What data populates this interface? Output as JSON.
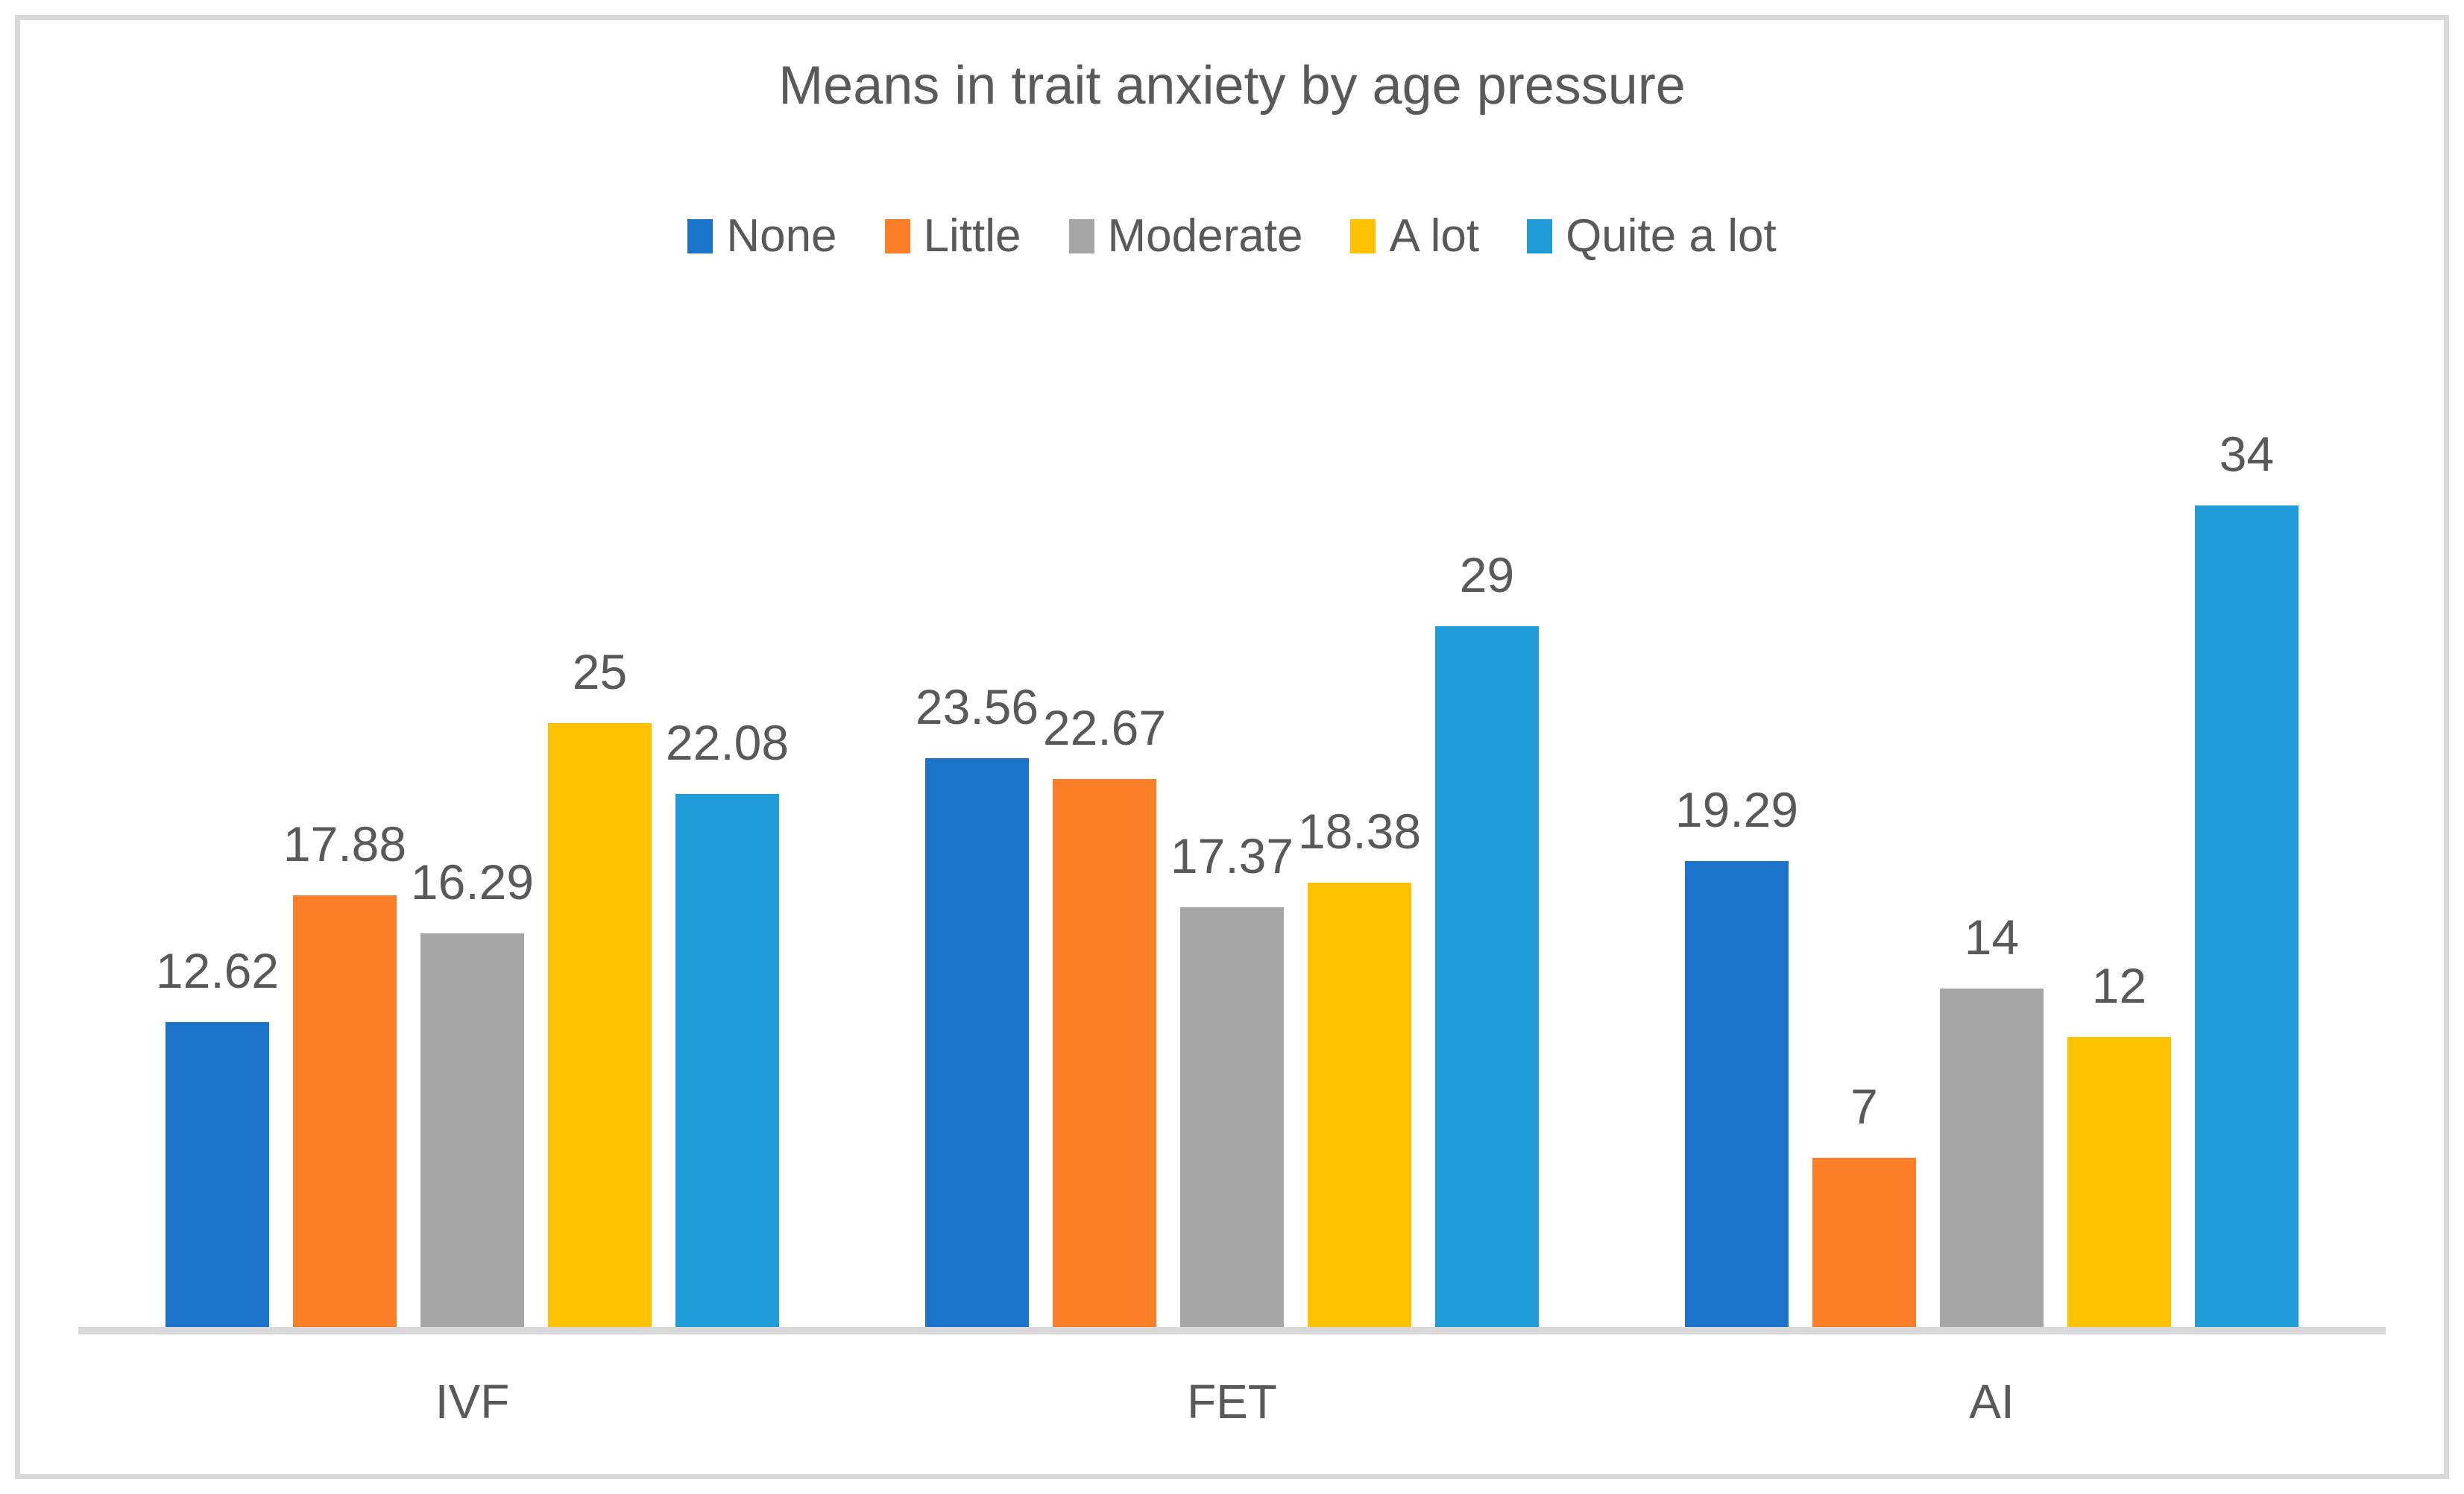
{
  "chart_data": {
    "type": "bar",
    "title": "Means in trait anxiety by age pressure",
    "categories": [
      "IVF",
      "FET",
      "AI"
    ],
    "series": [
      {
        "name": "None",
        "color": "#1B74C9",
        "values": [
          12.62,
          23.56,
          19.29
        ]
      },
      {
        "name": "Little",
        "color": "#FD7E28",
        "values": [
          17.88,
          22.67,
          7
        ]
      },
      {
        "name": "Moderate",
        "color": "#A6A6A6",
        "values": [
          16.29,
          17.37,
          14
        ]
      },
      {
        "name": "A lot",
        "color": "#FFC100",
        "values": [
          25,
          18.38,
          12
        ]
      },
      {
        "name": "Quite a lot",
        "color": "#209CD8",
        "values": [
          22.08,
          29,
          34
        ]
      }
    ],
    "data_labels": [
      "12.62",
      "17.88",
      "16.29",
      "25",
      "22.08",
      "23.56",
      "22.67",
      "17.37",
      "18.38",
      "29",
      "19.29",
      "7",
      "14",
      "12",
      "34"
    ],
    "legend_position": "top",
    "gridlines": false,
    "y_axis_visible": false,
    "x_axis_line_color": "#D9D9D9",
    "text_color": "#595959",
    "frame_border_color": "#D9D9D9",
    "background_color": "#FFFFFF"
  }
}
